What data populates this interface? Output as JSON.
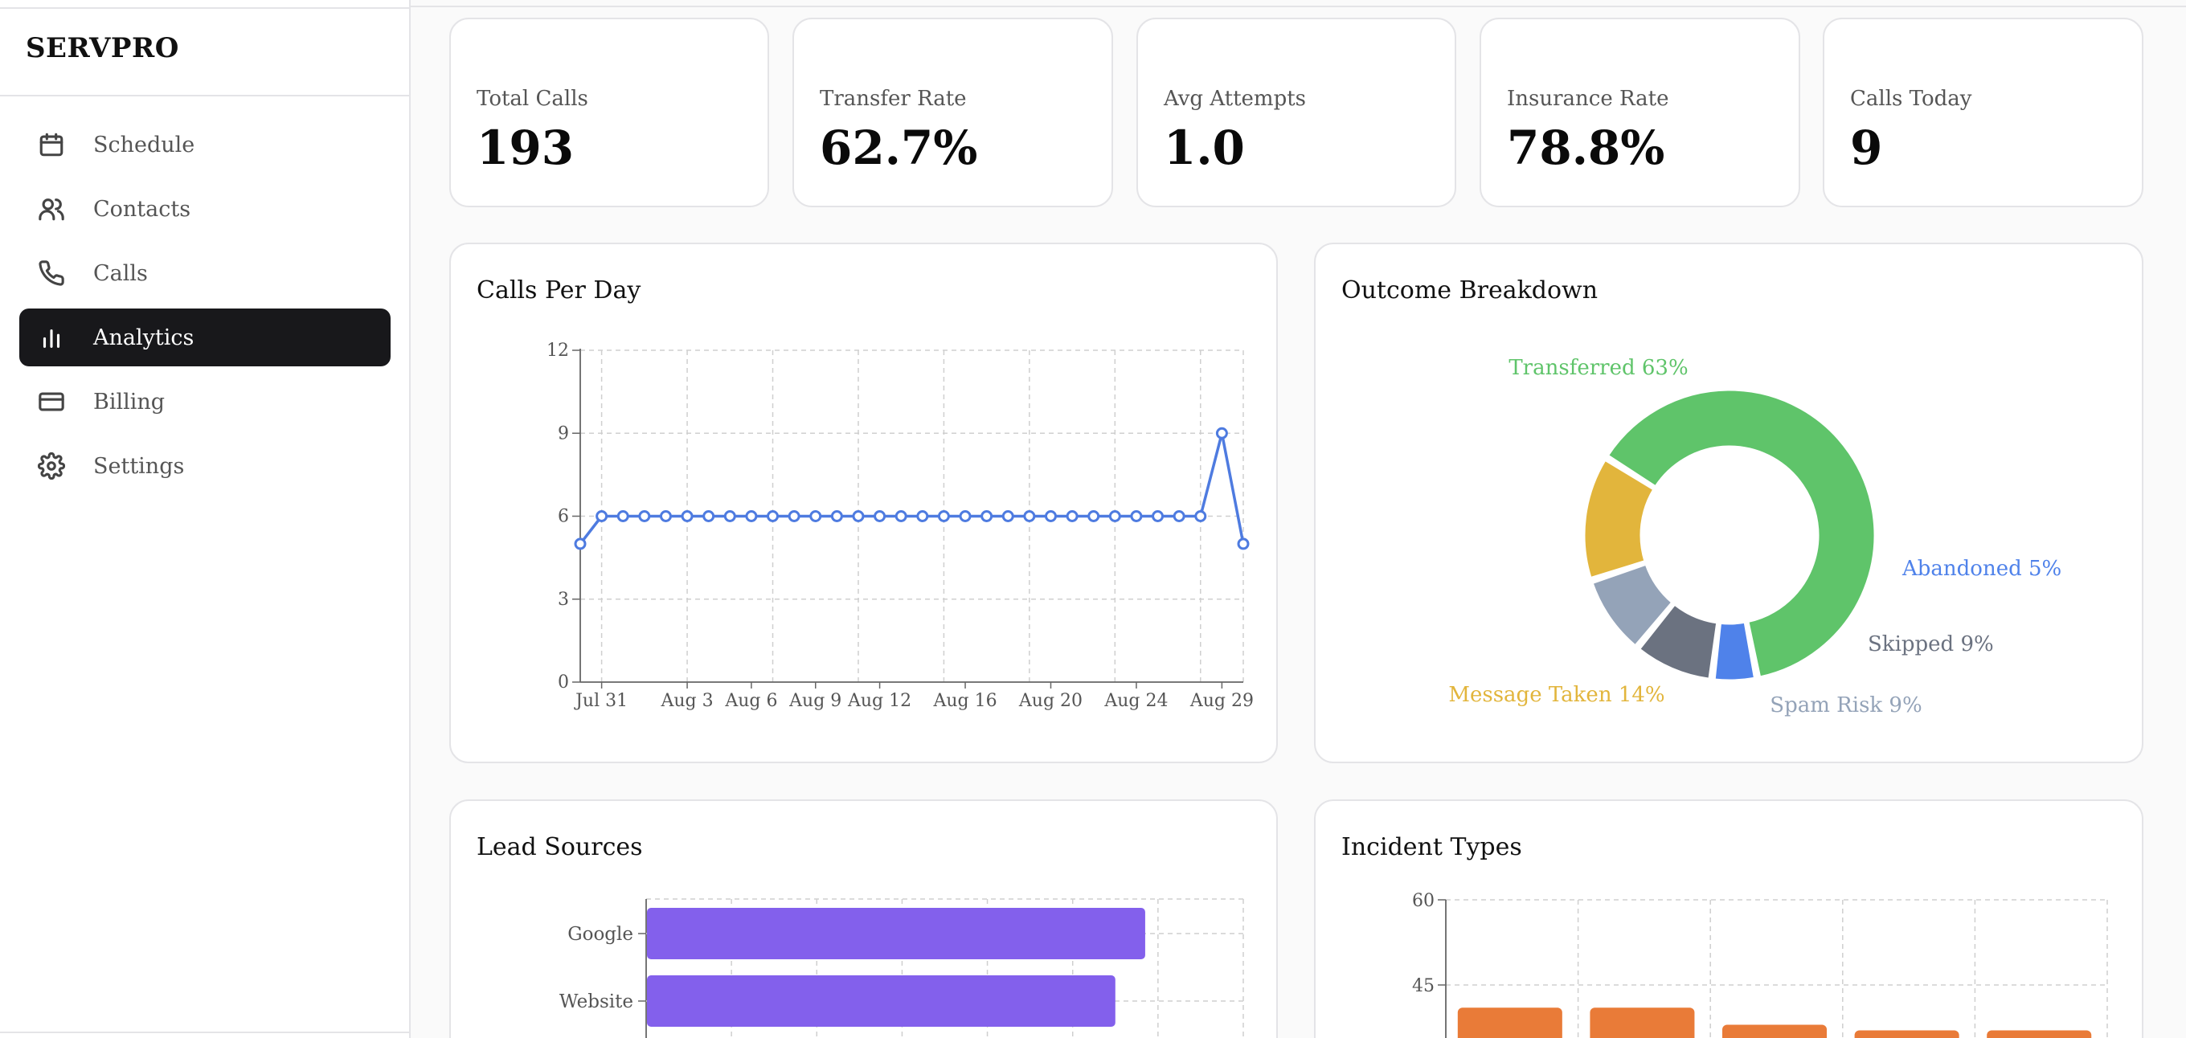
{
  "app": {
    "brand": "SERVPRO"
  },
  "sidebar": {
    "items": [
      {
        "label": "Schedule",
        "icon": "calendar-icon",
        "active": false
      },
      {
        "label": "Contacts",
        "icon": "users-icon",
        "active": false
      },
      {
        "label": "Calls",
        "icon": "phone-icon",
        "active": false
      },
      {
        "label": "Analytics",
        "icon": "bar-chart-icon",
        "active": true
      },
      {
        "label": "Billing",
        "icon": "credit-card-icon",
        "active": false
      },
      {
        "label": "Settings",
        "icon": "gear-icon",
        "active": false
      }
    ]
  },
  "stats": [
    {
      "label": "Total Calls",
      "value": "193"
    },
    {
      "label": "Transfer Rate",
      "value": "62.7%"
    },
    {
      "label": "Avg Attempts",
      "value": "1.0"
    },
    {
      "label": "Insurance Rate",
      "value": "78.8%"
    },
    {
      "label": "Calls Today",
      "value": "9"
    }
  ],
  "colors": {
    "line": "#4e7be0",
    "transferred": "#5fc46a",
    "abandoned": "#4f82ea",
    "skipped": "#6b7280",
    "spam": "#94a3b8",
    "message": "#e2b53c",
    "lead_bar": "#8360ec",
    "incident_bar": "#e97b38",
    "active_nav": "#18181b"
  },
  "panels": {
    "calls_per_day": "Calls Per Day",
    "outcome": "Outcome Breakdown",
    "lead_sources": "Lead Sources",
    "incident_types": "Incident Types"
  },
  "chart_data": [
    {
      "type": "line",
      "title": "Calls Per Day",
      "ylim": [
        0,
        12
      ],
      "yticks": [
        "0",
        "3",
        "6",
        "9",
        "12"
      ],
      "xtick_labels": [
        "Jul 31",
        "Aug 3",
        "Aug 6",
        "Aug 9",
        "Aug 12",
        "Aug 16",
        "Aug 20",
        "Aug 24",
        "Aug 29"
      ],
      "values": [
        5,
        6,
        6,
        6,
        6,
        6,
        6,
        6,
        6,
        6,
        6,
        6,
        6,
        6,
        6,
        6,
        6,
        6,
        6,
        6,
        6,
        6,
        6,
        6,
        6,
        6,
        6,
        6,
        6,
        6,
        9,
        5
      ],
      "grid": true
    },
    {
      "type": "pie",
      "title": "Outcome Breakdown",
      "slices": [
        {
          "name": "Transferred",
          "label": "Transferred 63%",
          "value": 63
        },
        {
          "name": "Abandoned",
          "label": "Abandoned 5%",
          "value": 5
        },
        {
          "name": "Skipped",
          "label": "Skipped 9%",
          "value": 9
        },
        {
          "name": "Spam Risk",
          "label": "Spam Risk 9%",
          "value": 9
        },
        {
          "name": "Message Taken",
          "label": "Message Taken 14%",
          "value": 14
        }
      ]
    },
    {
      "type": "bar",
      "title": "Lead Sources",
      "orientation": "horizontal",
      "categories": [
        "Google",
        "Website"
      ],
      "values": [
        117,
        110
      ],
      "xlim": [
        0,
        140
      ],
      "grid": true
    },
    {
      "type": "bar",
      "title": "Incident Types",
      "ylim": [
        0,
        60
      ],
      "yticks": [
        "45",
        "60"
      ],
      "values": [
        41,
        41,
        38,
        37,
        37
      ],
      "grid": true
    }
  ]
}
